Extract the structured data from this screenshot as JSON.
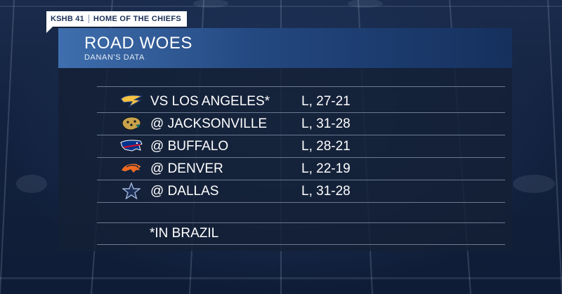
{
  "bug": {
    "station": "KSHB 41",
    "tagline": "HOME OF THE CHIEFS"
  },
  "graphic": {
    "title": "ROAD WOES",
    "subtitle": "DANAN'S DATA",
    "games": [
      {
        "team_logo": "chargers-logo-icon",
        "opponent": "VS LOS ANGELES*",
        "result": "L, 27-21"
      },
      {
        "team_logo": "jaguars-logo-icon",
        "opponent": "@ JACKSONVILLE",
        "result": "L, 31-28"
      },
      {
        "team_logo": "bills-logo-icon",
        "opponent": "@ BUFFALO",
        "result": "L, 28-21"
      },
      {
        "team_logo": "broncos-logo-icon",
        "opponent": "@ DENVER",
        "result": "L, 22-19"
      },
      {
        "team_logo": "cowboys-star-icon",
        "opponent": "@ DALLAS",
        "result": "L, 31-28"
      }
    ],
    "footnote": "*IN BRAZIL"
  },
  "colors": {
    "header_gradient_start": "#3f6fae",
    "header_gradient_end": "#15305d",
    "panel": "#142034",
    "chargers": "#f5c242",
    "jaguars": "#c9a24a",
    "bills": "#c8102e",
    "broncos": "#f26a21",
    "cowboys": "#2a4f8f"
  }
}
